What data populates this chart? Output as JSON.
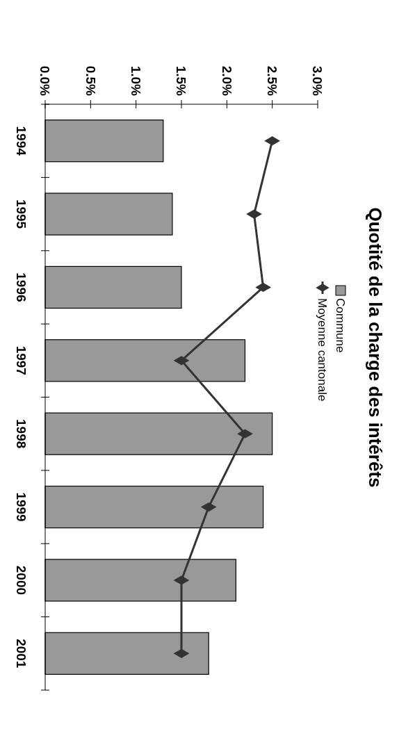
{
  "chart_data": {
    "type": "bar",
    "orientation": "horizontal",
    "title": "Quotité de la charge des intérêts",
    "categories": [
      "1994",
      "1995",
      "1996",
      "1997",
      "1998",
      "1999",
      "2000",
      "2001"
    ],
    "series": [
      {
        "name": "Commune",
        "color": "#999999",
        "values": [
          1.3,
          1.4,
          1.5,
          2.2,
          2.5,
          2.4,
          2.1,
          1.8
        ]
      },
      {
        "name": "Moyenne cantonale",
        "type": "line",
        "color": "#333333",
        "marker": "diamond",
        "values": [
          2.5,
          2.3,
          2.4,
          1.5,
          2.2,
          1.8,
          1.5,
          1.5
        ]
      }
    ],
    "xlim": [
      0,
      3
    ],
    "xticks": [
      {
        "value": 0,
        "label": "0.0%"
      },
      {
        "value": 0.5,
        "label": "0.5%"
      },
      {
        "value": 1,
        "label": "1.0%"
      },
      {
        "value": 1.5,
        "label": "1.5%"
      },
      {
        "value": 2,
        "label": "2.0%"
      },
      {
        "value": 2.5,
        "label": "2.5%"
      },
      {
        "value": 3,
        "label": "3.0%"
      }
    ],
    "grid": false,
    "legend": "top"
  }
}
